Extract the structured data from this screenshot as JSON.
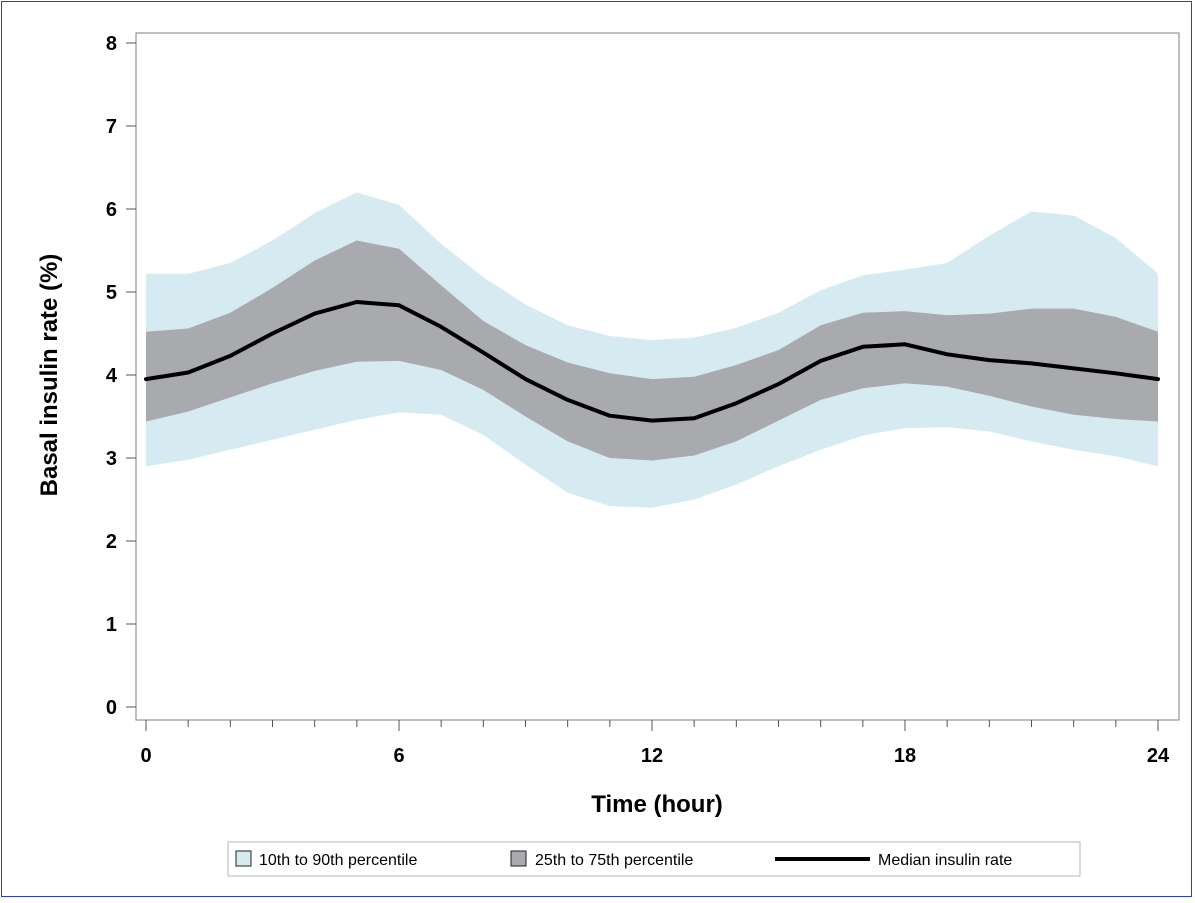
{
  "chart_data": {
    "type": "area",
    "title": "",
    "xlabel": "Time (hour)",
    "ylabel": "Basal insulin rate (%)",
    "xlim": [
      0,
      24
    ],
    "ylim": [
      0,
      8
    ],
    "x_ticks": [
      0,
      6,
      12,
      18,
      24
    ],
    "y_ticks": [
      0,
      1,
      2,
      3,
      4,
      5,
      6,
      7,
      8
    ],
    "grid": false,
    "legend_position": "bottom",
    "x": [
      0,
      1,
      2,
      3,
      4,
      5,
      6,
      7,
      8,
      9,
      10,
      11,
      12,
      13,
      14,
      15,
      16,
      17,
      18,
      19,
      20,
      21,
      22,
      23,
      24
    ],
    "series": [
      {
        "name": "10th to 90th percentile",
        "kind": "band",
        "color": "#d5eaf1",
        "lower": [
          2.9,
          2.98,
          3.1,
          3.22,
          3.34,
          3.46,
          3.55,
          3.52,
          3.28,
          2.92,
          2.58,
          2.42,
          2.4,
          2.5,
          2.68,
          2.9,
          3.1,
          3.27,
          3.36,
          3.37,
          3.32,
          3.2,
          3.1,
          3.02,
          2.9
        ],
        "upper": [
          5.22,
          5.22,
          5.35,
          5.62,
          5.95,
          6.2,
          6.05,
          5.58,
          5.18,
          4.85,
          4.6,
          4.47,
          4.42,
          4.45,
          4.57,
          4.75,
          5.02,
          5.2,
          5.27,
          5.35,
          5.68,
          5.97,
          5.92,
          5.65,
          5.22
        ]
      },
      {
        "name": "25th to 75th percentile",
        "kind": "band",
        "color": "#a8aaae",
        "lower": [
          3.44,
          3.56,
          3.73,
          3.9,
          4.05,
          4.16,
          4.17,
          4.06,
          3.82,
          3.5,
          3.2,
          3.0,
          2.97,
          3.03,
          3.2,
          3.45,
          3.7,
          3.84,
          3.9,
          3.86,
          3.75,
          3.62,
          3.52,
          3.47,
          3.44
        ],
        "upper": [
          4.52,
          4.56,
          4.75,
          5.05,
          5.38,
          5.62,
          5.52,
          5.08,
          4.65,
          4.36,
          4.15,
          4.02,
          3.95,
          3.98,
          4.12,
          4.3,
          4.6,
          4.75,
          4.77,
          4.72,
          4.74,
          4.8,
          4.8,
          4.7,
          4.52
        ]
      },
      {
        "name": "Median insulin rate",
        "kind": "line",
        "color": "#000000",
        "values": [
          3.95,
          4.03,
          4.23,
          4.5,
          4.74,
          4.88,
          4.84,
          4.58,
          4.27,
          3.95,
          3.7,
          3.51,
          3.45,
          3.48,
          3.66,
          3.89,
          4.17,
          4.34,
          4.37,
          4.25,
          4.18,
          4.14,
          4.08,
          4.02,
          3.95
        ]
      }
    ]
  }
}
